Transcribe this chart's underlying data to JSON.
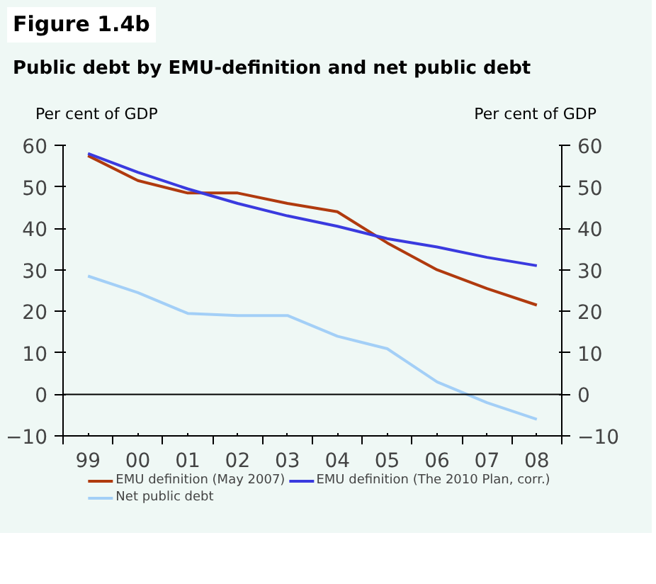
{
  "chart_data": {
    "type": "line",
    "title": "Figure 1.4b",
    "subtitle": "Public debt by EMU-definition and net public debt",
    "ylabel": "Per cent of GDP",
    "y2label": "Per cent of GDP",
    "categories": [
      "99",
      "00",
      "01",
      "02",
      "03",
      "04",
      "05",
      "06",
      "07",
      "08"
    ],
    "series": [
      {
        "name": "EMU definition (May 2007)",
        "color": "#b03a0e",
        "values": [
          57.5,
          51.5,
          48.5,
          48.5,
          46,
          44,
          36.5,
          30,
          25.5,
          21.5
        ]
      },
      {
        "name": "EMU definition (The 2010 Plan, corr.)",
        "color": "#3a3adf",
        "values": [
          58,
          53.5,
          49.5,
          46,
          43,
          40.5,
          37.5,
          35.5,
          33,
          31
        ]
      },
      {
        "name": "Net public debt",
        "color": "#a3cff7",
        "values": [
          28.5,
          24.5,
          19.5,
          19,
          19,
          14,
          11,
          3,
          -2,
          -6
        ]
      }
    ],
    "ylim": [
      -10,
      60
    ],
    "yticks": [
      -10,
      0,
      10,
      20,
      30,
      40,
      50,
      60
    ],
    "y2lim": [
      -10,
      60
    ],
    "y2ticks": [
      -10,
      0,
      10,
      20,
      30,
      40,
      50,
      60
    ],
    "ref_lines": [
      {
        "axis": "y",
        "value": 0,
        "color": "#000000"
      }
    ],
    "grid": false,
    "legend": "bottom",
    "line_style": "solid"
  }
}
